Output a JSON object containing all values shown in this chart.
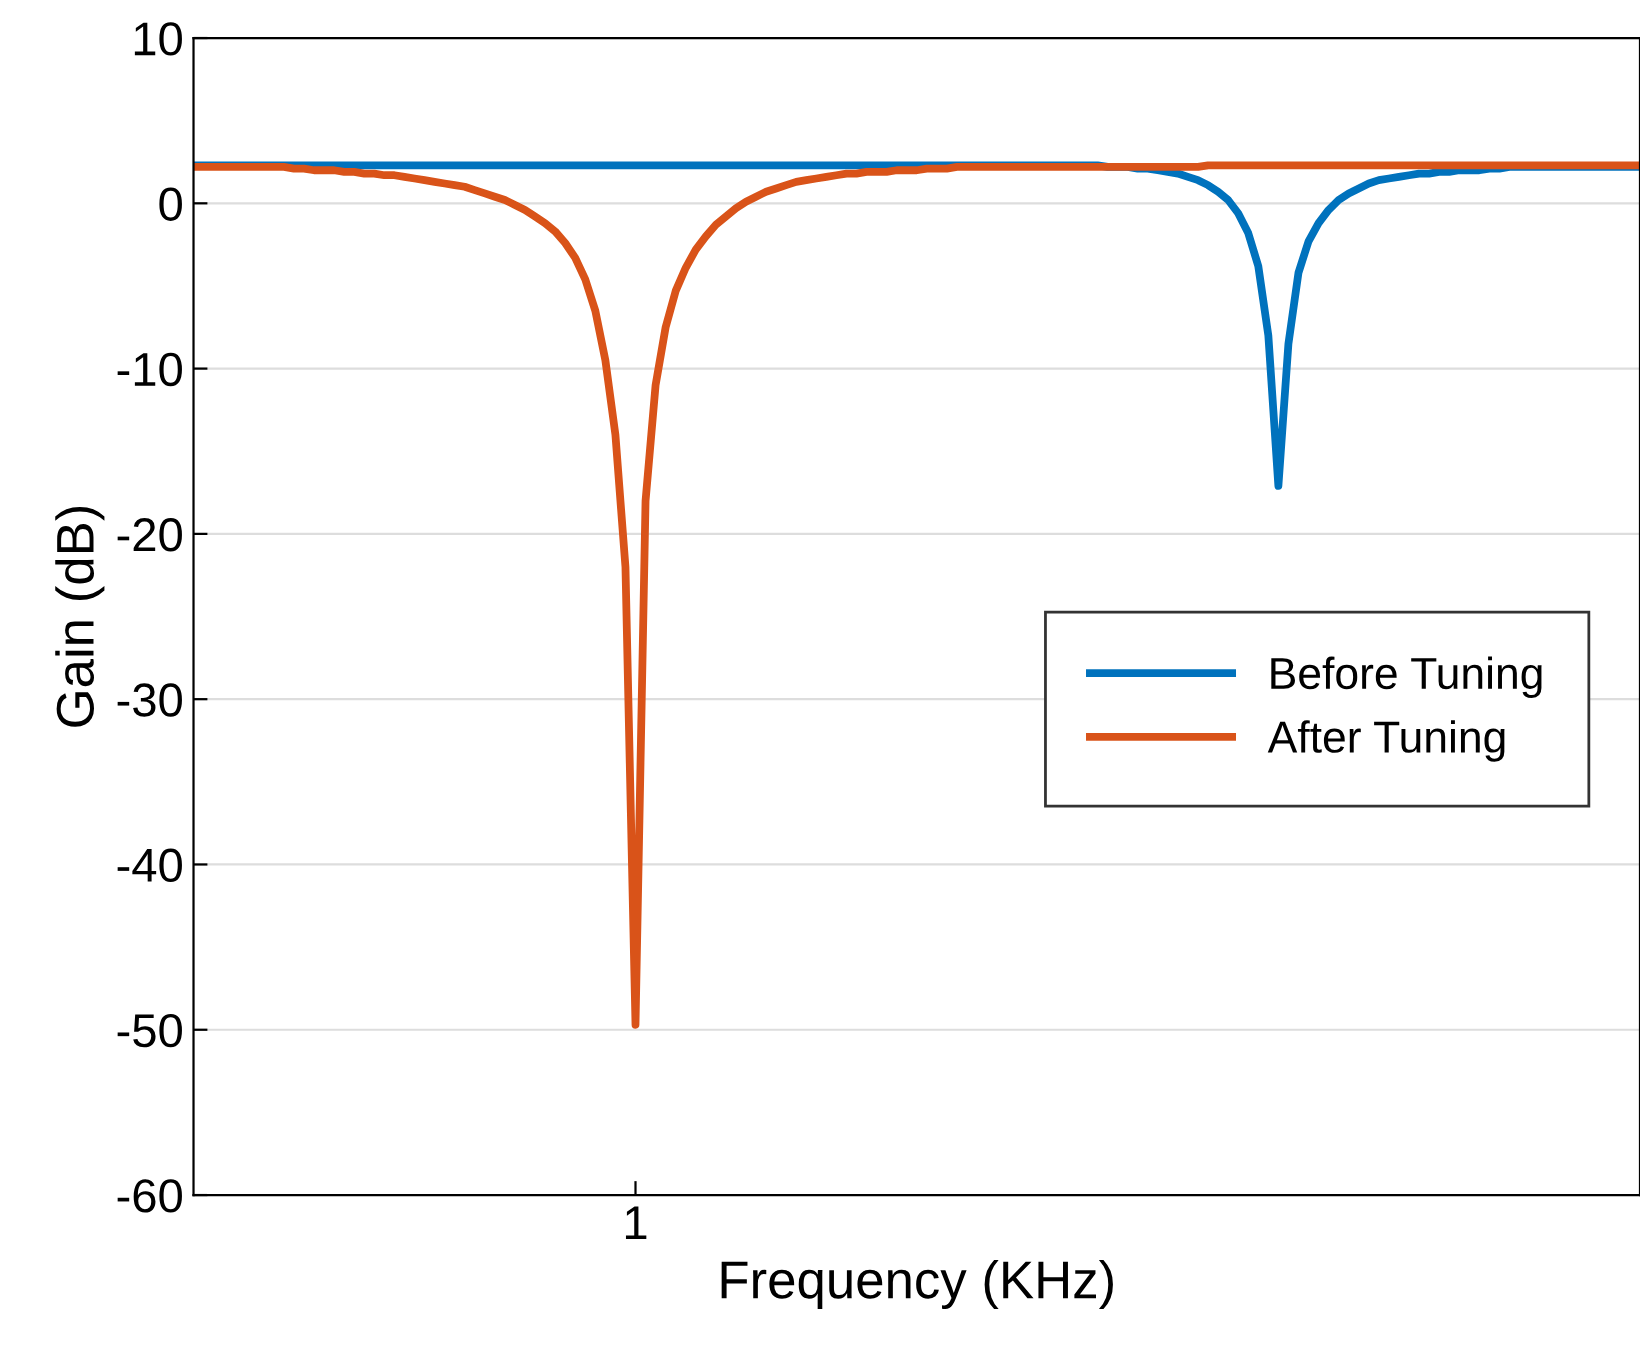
{
  "chart_data": {
    "type": "line",
    "xlabel": "Frequency (KHz)",
    "ylabel": "Gain (dB)",
    "categories": [
      null,
      null,
      null,
      null,
      null,
      null,
      null,
      null,
      null,
      null,
      null,
      null,
      null,
      null,
      null,
      null,
      null,
      null,
      null,
      null,
      null,
      null,
      null,
      null,
      null,
      null,
      null,
      null,
      null,
      null,
      null,
      null,
      null,
      null,
      null,
      null,
      null,
      null,
      null,
      null,
      null,
      null,
      null,
      null,
      "1",
      null,
      null,
      null,
      null,
      null,
      null,
      null,
      null,
      null,
      null,
      null,
      null,
      null,
      null,
      null,
      null,
      null,
      null,
      null,
      null,
      null,
      null,
      null,
      null,
      null,
      null,
      null,
      null,
      null,
      null,
      null,
      null,
      null,
      null,
      null,
      null,
      null,
      null,
      null,
      null,
      null,
      null,
      null,
      null,
      null,
      null,
      null,
      null,
      null,
      null,
      null,
      null,
      null,
      null,
      null,
      null,
      null,
      null,
      null,
      null,
      null,
      null,
      null,
      null,
      null,
      null,
      null,
      null,
      null,
      null,
      null,
      null,
      null,
      null,
      null,
      null,
      null,
      null,
      null,
      null,
      null,
      null,
      null,
      null,
      null,
      null,
      null,
      null,
      null,
      null,
      null,
      null,
      null,
      null,
      null,
      null,
      null,
      null,
      null,
      null
    ],
    "ylim": [
      -60,
      10
    ],
    "yticks": [
      -60,
      -50,
      -40,
      -30,
      -20,
      -10,
      0,
      10
    ],
    "grid": "y",
    "legend": "right",
    "line_style": "solid",
    "marker": "none",
    "series": [
      {
        "name": "Before Tuning",
        "color": "#0072bd",
        "values": [
          2.3,
          2.3,
          2.3,
          2.3,
          2.3,
          2.3,
          2.3,
          2.3,
          2.3,
          2.3,
          2.3,
          2.3,
          2.3,
          2.3,
          2.3,
          2.3,
          2.3,
          2.3,
          2.3,
          2.3,
          2.3,
          2.3,
          2.3,
          2.3,
          2.3,
          2.3,
          2.3,
          2.3,
          2.3,
          2.3,
          2.3,
          2.3,
          2.3,
          2.3,
          2.3,
          2.3,
          2.3,
          2.3,
          2.3,
          2.3,
          2.3,
          2.3,
          2.3,
          2.3,
          2.3,
          2.3,
          2.3,
          2.3,
          2.3,
          2.3,
          2.3,
          2.3,
          2.3,
          2.3,
          2.3,
          2.3,
          2.3,
          2.3,
          2.3,
          2.3,
          2.3,
          2.3,
          2.3,
          2.3,
          2.3,
          2.3,
          2.3,
          2.3,
          2.3,
          2.3,
          2.3,
          2.3,
          2.3,
          2.3,
          2.3,
          2.3,
          2.3,
          2.3,
          2.3,
          2.3,
          2.3,
          2.3,
          2.3,
          2.3,
          2.3,
          2.3,
          2.3,
          2.3,
          2.3,
          2.3,
          2.3,
          2.2,
          2.2,
          2.2,
          2.1,
          2.1,
          2.0,
          1.9,
          1.8,
          1.6,
          1.4,
          1.1,
          0.7,
          0.2,
          -0.6,
          -1.8,
          -3.8,
          -8,
          -17.1,
          -8.5,
          -4.2,
          -2.3,
          -1.2,
          -0.4,
          0.2,
          0.6,
          0.9,
          1.2,
          1.4,
          1.5,
          1.6,
          1.7,
          1.8,
          1.8,
          1.9,
          1.9,
          2.0,
          2.0,
          2.0,
          2.1,
          2.1,
          2.2,
          2.2,
          2.2,
          2.2,
          2.2,
          2.2,
          2.2,
          2.2,
          2.2,
          2.2,
          2.2,
          2.2,
          2.2,
          2.2
        ]
      },
      {
        "name": "After Tuning",
        "color": "#d95319",
        "values": [
          2.2,
          2.2,
          2.2,
          2.2,
          2.2,
          2.2,
          2.2,
          2.2,
          2.2,
          2.2,
          2.1,
          2.1,
          2.0,
          2.0,
          2.0,
          1.9,
          1.9,
          1.8,
          1.8,
          1.7,
          1.7,
          1.6,
          1.5,
          1.4,
          1.3,
          1.2,
          1.1,
          1.0,
          0.8,
          0.6,
          0.4,
          0.2,
          -0.1,
          -0.4,
          -0.8,
          -1.2,
          -1.7,
          -2.4,
          -3.3,
          -4.6,
          -6.5,
          -9.5,
          -14,
          -22,
          -49.7,
          -18,
          -11,
          -7.5,
          -5.3,
          -3.9,
          -2.8,
          -2.0,
          -1.3,
          -0.8,
          -0.3,
          0.1,
          0.4,
          0.7,
          0.9,
          1.1,
          1.3,
          1.4,
          1.5,
          1.6,
          1.7,
          1.8,
          1.8,
          1.9,
          1.9,
          1.9,
          2.0,
          2.0,
          2.0,
          2.1,
          2.1,
          2.1,
          2.2,
          2.2,
          2.2,
          2.2,
          2.2,
          2.2,
          2.2,
          2.2,
          2.2,
          2.2,
          2.2,
          2.2,
          2.2,
          2.2,
          2.2,
          2.2,
          2.2,
          2.2,
          2.2,
          2.2,
          2.2,
          2.2,
          2.2,
          2.2,
          2.2,
          2.3,
          2.3,
          2.3,
          2.3,
          2.3,
          2.3,
          2.3,
          2.3,
          2.3,
          2.3,
          2.3,
          2.3,
          2.3,
          2.3,
          2.3,
          2.3,
          2.3,
          2.3,
          2.3,
          2.3,
          2.3,
          2.3,
          2.3,
          2.3,
          2.3,
          2.3,
          2.3,
          2.3,
          2.3,
          2.3,
          2.3,
          2.3,
          2.3,
          2.3,
          2.3,
          2.3,
          2.3,
          2.3,
          2.3,
          2.3,
          2.3,
          2.3,
          2.3,
          2.3
        ]
      }
    ]
  }
}
